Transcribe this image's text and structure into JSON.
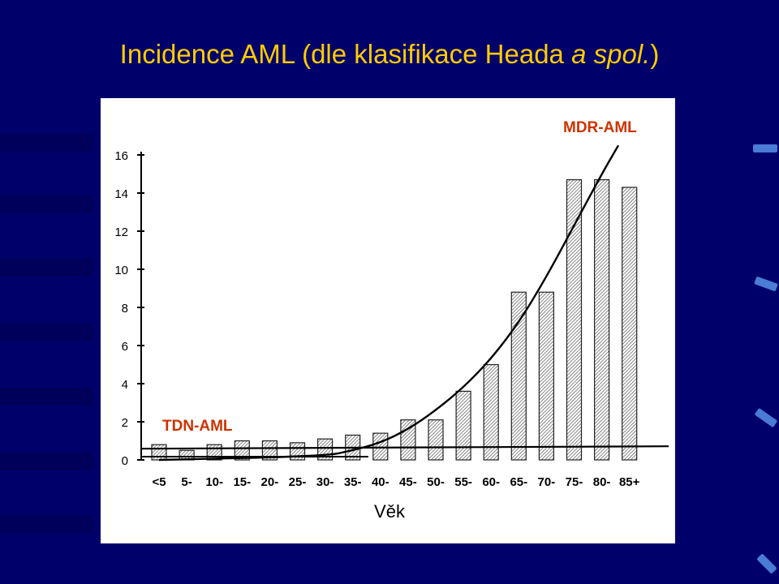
{
  "slide": {
    "title_main": "Incidence AML (dle klasifikace Heada ",
    "title_italic": "a spol.",
    "title_end": ")"
  },
  "colors": {
    "background": "#00006b",
    "title": "#ffcc00",
    "annotation": "#cc3300"
  },
  "chart_data": {
    "type": "bar",
    "categories": [
      "<5",
      "5-",
      "10-",
      "15-",
      "20-",
      "25-",
      "30-",
      "35-",
      "40-",
      "45-",
      "50-",
      "55-",
      "60-",
      "65-",
      "70-",
      "75-",
      "80-",
      "85+"
    ],
    "values": [
      0.8,
      0.5,
      0.8,
      1.0,
      1.0,
      0.9,
      1.1,
      1.3,
      1.4,
      2.1,
      2.1,
      3.6,
      5.0,
      8.8,
      8.8,
      14.7,
      14.7,
      14.3
    ],
    "ylim": [
      0,
      16
    ],
    "yticks": [
      "0",
      "2",
      "4",
      "6",
      "8",
      "10",
      "12",
      "14",
      "16"
    ],
    "xlabel": "Věk",
    "annotations": {
      "mdr": "MDR-AML",
      "tdn": "TDN-AML"
    },
    "tdn_level": 0.8,
    "mdr_curve": [
      [
        0,
        0
      ],
      [
        6,
        0.2
      ],
      [
        7,
        0.5
      ],
      [
        8,
        0.9
      ],
      [
        9,
        1.6
      ],
      [
        10,
        2.6
      ],
      [
        11,
        3.8
      ],
      [
        12,
        5.3
      ],
      [
        13,
        7.2
      ],
      [
        14,
        9.6
      ],
      [
        15,
        12.3
      ],
      [
        16,
        15.0
      ],
      [
        16.6,
        16.5
      ]
    ]
  }
}
